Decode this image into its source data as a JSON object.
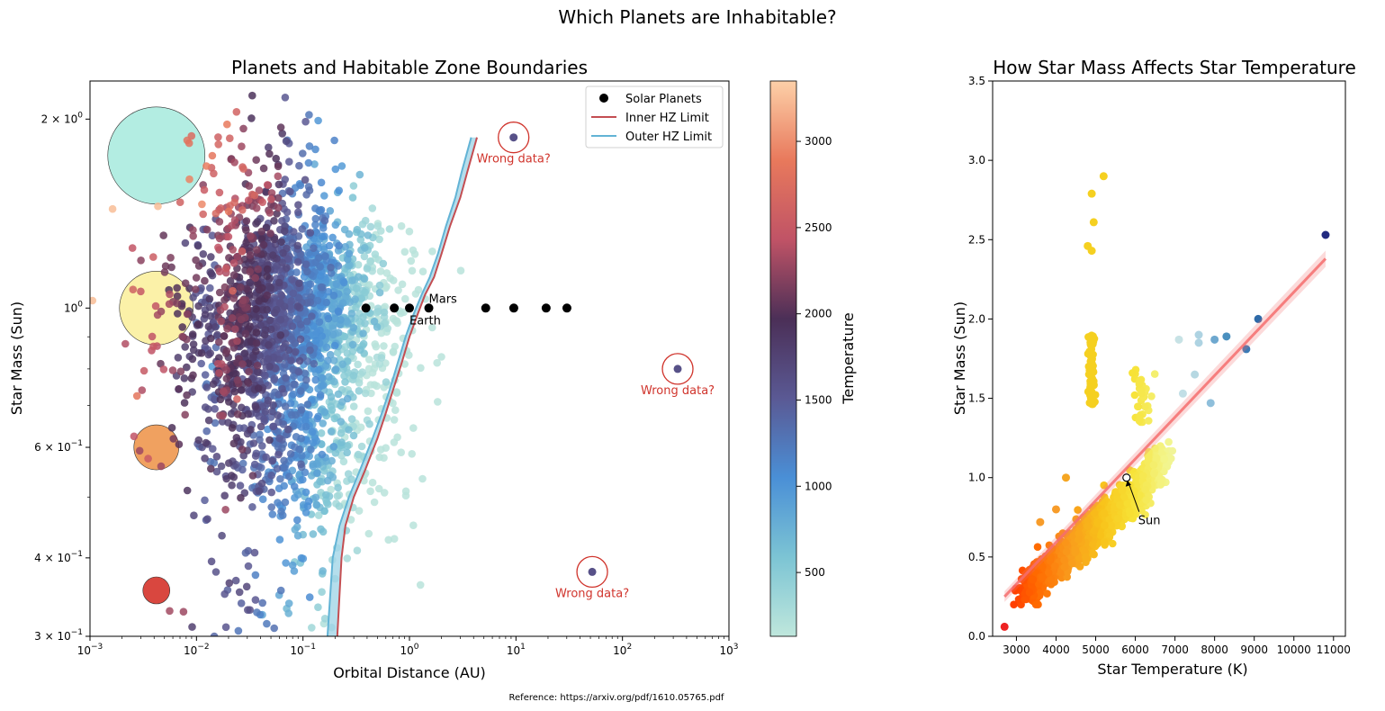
{
  "suptitle": "Which Planets are Inhabitable?",
  "reference": "Reference: https://arxiv.org/pdf/1610.05765.pdf",
  "chart_data": [
    {
      "type": "scatter",
      "title": "Planets and Habitable Zone Boundaries",
      "xlabel": "Orbital Distance (AU)",
      "ylabel": "Star Mass (Sun)",
      "xscale": "log",
      "yscale": "log",
      "xlim": [
        0.001,
        1000
      ],
      "ylim": [
        0.3,
        2.3
      ],
      "x_ticks": [
        {
          "v": 0.001,
          "b": "10",
          "e": "−3"
        },
        {
          "v": 0.01,
          "b": "10",
          "e": "−2"
        },
        {
          "v": 0.1,
          "b": "10",
          "e": "−1"
        },
        {
          "v": 1,
          "b": "10",
          "e": "0"
        },
        {
          "v": 10,
          "b": "10",
          "e": "1"
        },
        {
          "v": 100,
          "b": "10",
          "e": "2"
        },
        {
          "v": 1000,
          "b": "10",
          "e": "3"
        }
      ],
      "y_ticks": [
        {
          "v": 0.3,
          "m": "3 × 10",
          "e": "−1"
        },
        {
          "v": 0.4,
          "m": "4 × 10",
          "e": "−1"
        },
        {
          "v": 0.6,
          "m": "6 × 10",
          "e": "−1"
        },
        {
          "v": 1,
          "m": "10",
          "e": "0"
        },
        {
          "v": 2,
          "m": "2 × 10",
          "e": "0"
        }
      ],
      "legend": {
        "position": "upper right",
        "entries": [
          "Solar Planets",
          "Inner HZ Limit",
          "Outer HZ Limit"
        ]
      },
      "series": [
        {
          "name": "Solar Planets",
          "color": "#000000",
          "points": [
            [
              0.39,
              1
            ],
            [
              0.72,
              1
            ],
            [
              1.0,
              1
            ],
            [
              1.52,
              1
            ],
            [
              5.2,
              1
            ],
            [
              9.54,
              1
            ],
            [
              19.2,
              1
            ],
            [
              30.1,
              1
            ]
          ]
        },
        {
          "name": "Inner HZ Limit",
          "color": "#c44e52",
          "points": [
            [
              0.21,
              0.3
            ],
            [
              0.23,
              0.4
            ],
            [
              0.25,
              0.45
            ],
            [
              0.3,
              0.5
            ],
            [
              0.38,
              0.55
            ],
            [
              0.5,
              0.62
            ],
            [
              0.6,
              0.68
            ],
            [
              0.7,
              0.74
            ],
            [
              0.85,
              0.82
            ],
            [
              1.0,
              0.9
            ],
            [
              1.2,
              0.98
            ],
            [
              1.4,
              1.05
            ],
            [
              1.7,
              1.12
            ],
            [
              2.0,
              1.22
            ],
            [
              2.4,
              1.35
            ],
            [
              3.0,
              1.5
            ],
            [
              3.5,
              1.65
            ],
            [
              4.3,
              1.87
            ]
          ]
        },
        {
          "name": "Outer HZ Limit",
          "color": "#62b3d5",
          "points": [
            [
              0.17,
              0.3
            ],
            [
              0.19,
              0.4
            ],
            [
              0.22,
              0.45
            ],
            [
              0.27,
              0.5
            ],
            [
              0.34,
              0.55
            ],
            [
              0.45,
              0.62
            ],
            [
              0.55,
              0.68
            ],
            [
              0.65,
              0.74
            ],
            [
              0.78,
              0.82
            ],
            [
              0.92,
              0.9
            ],
            [
              1.1,
              0.98
            ],
            [
              1.3,
              1.05
            ],
            [
              1.55,
              1.12
            ],
            [
              1.85,
              1.22
            ],
            [
              2.2,
              1.35
            ],
            [
              2.7,
              1.5
            ],
            [
              3.1,
              1.65
            ],
            [
              3.8,
              1.87
            ]
          ]
        }
      ],
      "planet_clusters": [
        {
          "cx": 0.08,
          "cy": 1.0,
          "sx": 0.5,
          "sy": 0.075,
          "n": 1500
        },
        {
          "cx": 0.05,
          "cy": 0.75,
          "sx": 0.45,
          "sy": 0.09,
          "n": 500
        },
        {
          "cx": 0.12,
          "cy": 0.55,
          "sx": 0.4,
          "sy": 0.06,
          "n": 250
        },
        {
          "cx": 0.05,
          "cy": 1.55,
          "sx": 0.35,
          "sy": 0.06,
          "n": 130
        },
        {
          "cx": 0.05,
          "cy": 0.35,
          "sx": 0.35,
          "sy": 0.04,
          "n": 50
        }
      ],
      "outliers": [
        {
          "x": 9.5,
          "y": 1.87,
          "label": "Wrong data?",
          "temp": 1600
        },
        {
          "x": 330,
          "y": 0.8,
          "label": "Wrong data?",
          "temp": 1600
        },
        {
          "x": 52,
          "y": 0.38,
          "label": "Wrong data?",
          "temp": 1600
        }
      ],
      "planet_annotations": [
        {
          "x": 1.52,
          "y": 1.0,
          "label": "Mars"
        },
        {
          "x": 1.0,
          "y": 1.0,
          "label": "Earth"
        }
      ],
      "size_reference_circles": [
        {
          "y": 1.75,
          "color": "#b3ede2"
        },
        {
          "y": 1.0,
          "color": "#fbf1a8"
        },
        {
          "y": 0.6,
          "color": "#f0a160"
        },
        {
          "y": 0.355,
          "color": "#d9473f"
        }
      ],
      "colorbar": {
        "label": "Temperature",
        "range": [
          130,
          3350
        ],
        "ticks": [
          500,
          1000,
          1500,
          2000,
          2500,
          3000
        ],
        "stops": [
          "#bfe7dc",
          "#7cc4d4",
          "#4a8fd6",
          "#5a5994",
          "#4b2f57",
          "#c05366",
          "#e8795c",
          "#fdd0a8"
        ]
      }
    },
    {
      "type": "scatter",
      "title": "How Star Mass Affects Star Temperature",
      "xlabel": "Star Temperature (K)",
      "ylabel": "Star Mass (Sun)",
      "xlim": [
        2400,
        11300
      ],
      "ylim": [
        0,
        3.5
      ],
      "x_ticks": [
        3000,
        4000,
        5000,
        6000,
        7000,
        8000,
        9000,
        10000,
        11000
      ],
      "y_ticks": [
        "0.0",
        "0.5",
        "1.0",
        "1.5",
        "2.0",
        "2.5",
        "3.0",
        "3.5"
      ],
      "regression_line": {
        "x": [
          2700,
          10800
        ],
        "y": [
          0.25,
          2.38
        ],
        "color": "#f46d6d"
      },
      "annotation": {
        "x": 5778,
        "y": 1.0,
        "label": "Sun"
      },
      "highlight_points": [
        {
          "x": 2700,
          "y": 0.06,
          "c": "#ee2222"
        },
        {
          "x": 10800,
          "y": 2.53,
          "c": "#222a80"
        },
        {
          "x": 9100,
          "y": 2.0,
          "c": "#2e6aa8"
        },
        {
          "x": 8800,
          "y": 1.81,
          "c": "#3b7ab5"
        },
        {
          "x": 8300,
          "y": 1.89,
          "c": "#4a90bf"
        },
        {
          "x": 8000,
          "y": 1.87,
          "c": "#6ea8cf"
        },
        {
          "x": 7900,
          "y": 1.47,
          "c": "#8fbfdb"
        },
        {
          "x": 7600,
          "y": 1.85,
          "c": "#aed3e2"
        },
        {
          "x": 7600,
          "y": 1.9,
          "c": "#aed3e2"
        },
        {
          "x": 7500,
          "y": 1.65,
          "c": "#b6d8e2"
        },
        {
          "x": 7200,
          "y": 1.53,
          "c": "#c2dfe6"
        },
        {
          "x": 7100,
          "y": 1.87,
          "c": "#c7e2e5"
        },
        {
          "x": 5200,
          "y": 2.9,
          "c": "#f5d020"
        },
        {
          "x": 4900,
          "y": 2.79,
          "c": "#f5d020"
        },
        {
          "x": 4950,
          "y": 2.61,
          "c": "#f5d020"
        },
        {
          "x": 4800,
          "y": 2.46,
          "c": "#f5d020"
        },
        {
          "x": 4900,
          "y": 2.43,
          "c": "#f5d020"
        },
        {
          "x": 4250,
          "y": 1.0,
          "c": "#f5a623"
        },
        {
          "x": 4000,
          "y": 0.8,
          "c": "#f79c2a"
        },
        {
          "x": 3600,
          "y": 0.72,
          "c": "#f79c2a"
        }
      ]
    }
  ]
}
